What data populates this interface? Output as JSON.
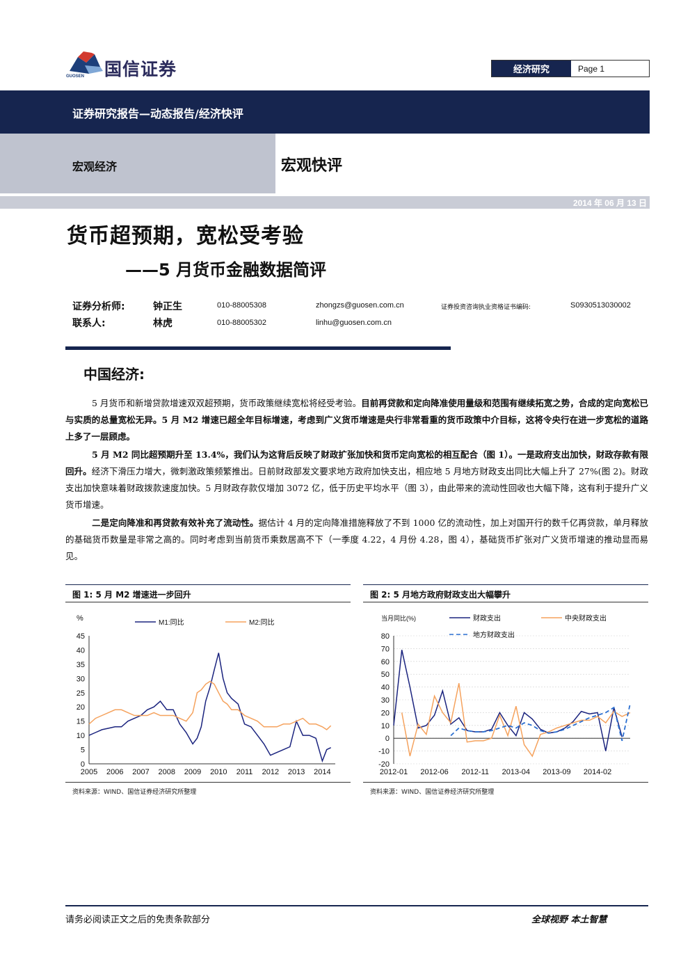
{
  "header": {
    "logo_text": "国信证券",
    "logo_sub": "GUOSEN",
    "category": "经济研究",
    "page": "Page 1"
  },
  "band": {
    "report_type": "证券研究报告—动态报告/经济快评",
    "sector": "宏观经济",
    "column": "宏观快评",
    "date": "2014 年 06 月 13 日"
  },
  "title": "货币超预期，宽松受考验",
  "subtitle": "——5 月货币金融数据简评",
  "authors": [
    {
      "role": "证券分析师:",
      "name": "钟正生",
      "phone": "010-88005308",
      "email": "zhongzs@guosen.com.cn",
      "cert_label": "证券投资咨询执业资格证书编码:",
      "cert": "S0930513030002"
    },
    {
      "role": "联系人:",
      "name": "林虎",
      "phone": "010-88005302",
      "email": "linhu@guosen.com.cn",
      "cert_label": "",
      "cert": ""
    }
  ],
  "section_title": "中国经济:",
  "paragraphs": {
    "p1_normal": "5 月货币和新增贷款增速双双超预期，货币政策继续宽松将经受考验。",
    "p1_bold": "目前再贷款和定向降准使用量级和范围有继续拓宽之势，合成的定向宽松已与实质的总量宽松无异。5 月 M2 增速已超全年目标增速，考虑到广义货币增速是央行非常看重的货币政策中介目标，这将令央行在进一步宽松的道路上多了一层顾虑。",
    "p2_bold": "5 月 M2 同比超预期升至 13.4%，我们认为这背后反映了财政扩张加快和货币定向宽松的相互配合（图 1）。一是政府支出加快，财政存款有限回升。",
    "p2_normal": "经济下滑压力增大，微刺激政策频繁推出。日前财政部发文要求地方政府加快支出，相应地 5 月地方财政支出同比大幅上升了 27%(图 2)。财政支出加快意味着财政拨款速度加快。5 月财政存款仅增加 3072 亿，低于历史平均水平（图 3），由此带来的流动性回收也大幅下降，这有利于提升广义货币增速。",
    "p3_bold": "二是定向降准和再贷款有效补充了流动性。",
    "p3_normal": "据估计 4 月的定向降准措施释放了不到 1000 亿的流动性，加上对国开行的数千亿再贷款，单月释放的基础货币数量是非常之高的。同时考虑到当前货币乘数居高不下（一季度 4.22，4 月份 4.28，图 4），基础货币扩张对广义货币增速的推动显而易见。"
  },
  "figures": [
    {
      "title": "图 1:  5 月 M2 增速进一步回升",
      "source": "资料来源：WIND、国信证券经济研究所整理"
    },
    {
      "title": "图 2:  5 月地方政府财政支出大幅攀升",
      "source": "资料来源：WIND、国信证券经济研究所整理"
    }
  ],
  "chart_data": [
    {
      "type": "line",
      "ylabel": "%",
      "ylim": [
        0,
        45
      ],
      "yticks": [
        "0",
        "5",
        "10",
        "15",
        "20",
        "25",
        "30",
        "35",
        "40",
        "45"
      ],
      "xticks": [
        "2005",
        "2006",
        "2007",
        "2008",
        "2009",
        "2010",
        "2011",
        "2012",
        "2013",
        "2014"
      ],
      "xlim": [
        2005,
        2014.5
      ],
      "legend_position": "top",
      "series": [
        {
          "name": "M1:同比",
          "color": "#1a237e",
          "x": [
            2005.0,
            2005.25,
            2005.5,
            2005.75,
            2006.0,
            2006.25,
            2006.5,
            2006.75,
            2007.0,
            2007.25,
            2007.5,
            2007.75,
            2008.0,
            2008.25,
            2008.5,
            2008.75,
            2009.0,
            2009.17,
            2009.33,
            2009.5,
            2009.67,
            2009.83,
            2010.0,
            2010.17,
            2010.33,
            2010.5,
            2010.75,
            2011.0,
            2011.25,
            2011.5,
            2011.75,
            2012.0,
            2012.25,
            2012.5,
            2012.75,
            2013.0,
            2013.25,
            2013.5,
            2013.75,
            2014.0,
            2014.17,
            2014.33
          ],
          "y": [
            10,
            11,
            12,
            12.5,
            13,
            13,
            15,
            16,
            17,
            19,
            20,
            22,
            19,
            19,
            14,
            11,
            7,
            9,
            13,
            22,
            27,
            33,
            39,
            30,
            25,
            23,
            21,
            14,
            13,
            10,
            7,
            3,
            4,
            5,
            6,
            15,
            10,
            10,
            9,
            1,
            5,
            5.7
          ]
        },
        {
          "name": "M2:同比",
          "color": "#f5a25d",
          "x": [
            2005.0,
            2005.25,
            2005.5,
            2005.75,
            2006.0,
            2006.25,
            2006.5,
            2006.75,
            2007.0,
            2007.25,
            2007.5,
            2007.75,
            2008.0,
            2008.25,
            2008.5,
            2008.75,
            2009.0,
            2009.17,
            2009.33,
            2009.5,
            2009.67,
            2009.83,
            2010.0,
            2010.17,
            2010.33,
            2010.5,
            2010.75,
            2011.0,
            2011.25,
            2011.5,
            2011.75,
            2012.0,
            2012.25,
            2012.5,
            2012.75,
            2013.0,
            2013.25,
            2013.5,
            2013.75,
            2014.0,
            2014.17,
            2014.33
          ],
          "y": [
            14,
            16,
            17,
            18,
            19,
            19,
            18,
            17,
            17,
            17,
            18,
            17,
            17,
            17,
            16,
            15,
            18,
            25,
            26,
            28,
            29,
            28,
            25,
            22,
            21,
            19,
            19,
            17,
            16,
            15,
            13,
            13,
            13,
            14,
            14,
            15,
            16,
            14,
            14,
            13,
            12,
            13.4
          ]
        }
      ]
    },
    {
      "type": "line",
      "ylabel": "当月同比(%)",
      "ylim": [
        -20,
        80
      ],
      "yticks": [
        "-20",
        "-10",
        "0",
        "10",
        "20",
        "30",
        "40",
        "50",
        "60",
        "70",
        "80"
      ],
      "xticks": [
        "2012-01",
        "2012-06",
        "2012-11",
        "2013-04",
        "2013-09",
        "2014-02"
      ],
      "xlim": [
        0,
        29
      ],
      "legend_position": "top",
      "series": [
        {
          "name": "财政支出",
          "color": "#1a237e",
          "x": [
            0,
            1,
            2,
            3,
            4,
            5,
            6,
            7,
            8,
            9,
            10,
            11,
            12,
            13,
            14,
            15,
            16,
            17,
            18,
            19,
            20,
            21,
            22,
            23,
            24,
            25,
            26,
            27,
            28
          ],
          "y": [
            10,
            69,
            40,
            8,
            10,
            18,
            37,
            11,
            16,
            6,
            5,
            5,
            7,
            20,
            10,
            2,
            20,
            15,
            7,
            4,
            5,
            8,
            13,
            21,
            19,
            20,
            -10,
            24,
            1
          ]
        },
        {
          "name": "中央财政支出",
          "color": "#f5a25d",
          "x": [
            1,
            2,
            3,
            4,
            5,
            6,
            7,
            8,
            9,
            10,
            11,
            12,
            13,
            14,
            15,
            16,
            17,
            18,
            19,
            20,
            21,
            22,
            23,
            24,
            25,
            26,
            27,
            28,
            29
          ],
          "y": [
            20,
            -14,
            11,
            3,
            33,
            20,
            12,
            43,
            -3,
            -2,
            -2,
            0,
            18,
            2,
            25,
            -5,
            -14,
            3,
            5,
            8,
            10,
            12,
            14,
            14,
            17,
            12,
            21,
            17,
            20
          ]
        },
        {
          "name": "地方财政支出",
          "color": "#2a6fd1",
          "dashed": true,
          "x": [
            7,
            8,
            9,
            10,
            11,
            12,
            13,
            14,
            15,
            16,
            17,
            18,
            19,
            20,
            21,
            22,
            23,
            24,
            25,
            26,
            27,
            28,
            29
          ],
          "y": [
            2,
            8,
            6,
            5,
            5,
            6,
            8,
            10,
            8,
            12,
            10,
            6,
            4,
            5,
            7,
            10,
            13,
            16,
            18,
            20,
            24,
            -2,
            27
          ]
        }
      ]
    }
  ],
  "footer": {
    "left": "请务必阅读正文之后的免责条款部分",
    "right": "全球视野   本土智慧"
  }
}
